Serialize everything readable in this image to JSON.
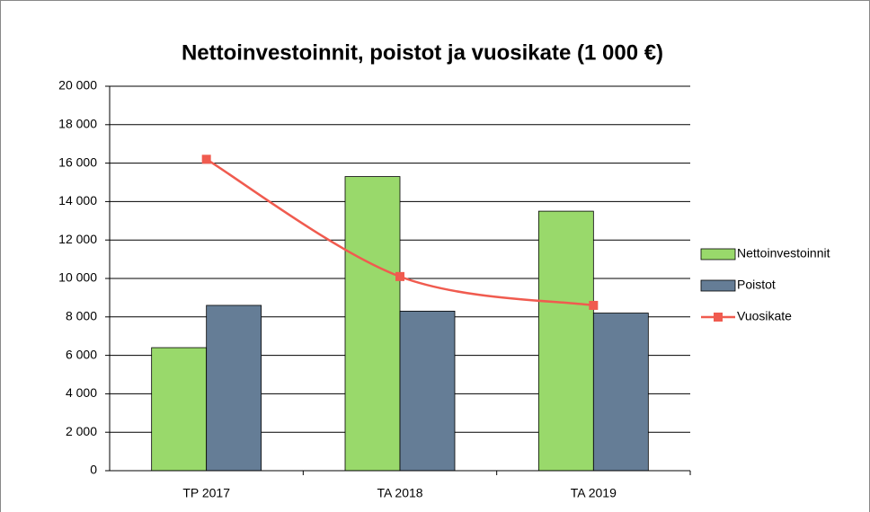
{
  "chart_data": {
    "type": "combo",
    "title": "Nettoinvestoinnit, poistot ja vuosikate (1 000 €)",
    "categories": [
      "TP 2017",
      "TA 2018",
      "TA 2019"
    ],
    "series": [
      {
        "name": "Nettoinvestoinnit",
        "type": "bar",
        "color": "#99d96b",
        "values": [
          6400,
          15300,
          13500
        ]
      },
      {
        "name": "Poistot",
        "type": "bar",
        "color": "#657d96",
        "values": [
          8600,
          8300,
          8200
        ]
      },
      {
        "name": "Vuosikate",
        "type": "line",
        "color": "#f05b4f",
        "values": [
          16200,
          10100,
          8600
        ]
      }
    ],
    "ylim": [
      0,
      20000
    ],
    "yticks": [
      0,
      {
        "value": 2000,
        "label": "2 000"
      },
      {
        "value": 4000,
        "label": "4 000"
      },
      {
        "value": 6000,
        "label": "6 000"
      },
      {
        "value": 8000,
        "label": "8 000"
      },
      {
        "value": 10000,
        "label": "10 000"
      },
      {
        "value": 12000,
        "label": "12 000"
      },
      {
        "value": 14000,
        "label": "14 000"
      },
      {
        "value": 16000,
        "label": "16 000"
      },
      {
        "value": 18000,
        "label": "18 000"
      },
      {
        "value": 20000,
        "label": "20 000"
      }
    ],
    "grid": true,
    "legend": "right"
  }
}
